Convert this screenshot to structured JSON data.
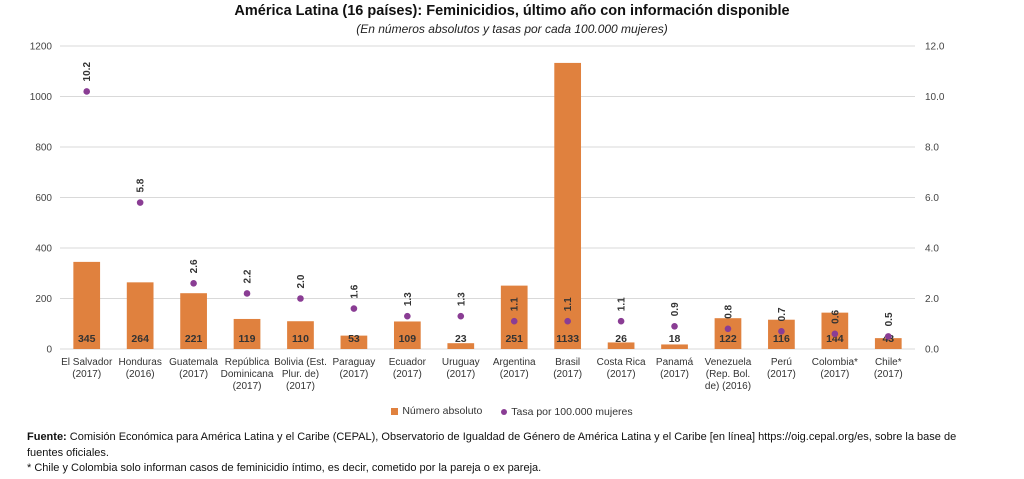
{
  "title": "América Latina (16 países): Feminicidios, último año con información disponible",
  "subtitle": "(En números absolutos y tasas por cada 100.000 mujeres)",
  "colors": {
    "bars": "#e0813e",
    "points": "#8a3d94",
    "grid": "#d9d9d9"
  },
  "chart_data": {
    "type": "bar",
    "categories": [
      [
        "El Salvador",
        "(2017)"
      ],
      [
        "Honduras",
        "(2016)"
      ],
      [
        "Guatemala",
        "(2017)"
      ],
      [
        "República",
        "Dominicana",
        "(2017)"
      ],
      [
        "Bolivia (Est.",
        "Plur. de)",
        "(2017)"
      ],
      [
        "Paraguay",
        "(2017)"
      ],
      [
        "Ecuador",
        "(2017)"
      ],
      [
        "Uruguay",
        "(2017)"
      ],
      [
        "Argentina",
        "(2017)"
      ],
      [
        "Brasil",
        "(2017)"
      ],
      [
        "Costa Rica",
        "(2017)"
      ],
      [
        "Panamá",
        "(2017)"
      ],
      [
        "Venezuela",
        "(Rep. Bol.",
        "de) (2016)"
      ],
      [
        "Perú",
        "(2017)"
      ],
      [
        "Colombia*",
        "(2017)"
      ],
      [
        "Chile*",
        "(2017)"
      ]
    ],
    "series": [
      {
        "name": "Número absoluto",
        "type": "bar",
        "axis": "left",
        "values": [
          345,
          264,
          221,
          119,
          110,
          53,
          109,
          23,
          251,
          1133,
          26,
          18,
          122,
          116,
          144,
          43
        ]
      },
      {
        "name": "Tasa por 100.000 mujeres",
        "type": "scatter",
        "axis": "right",
        "values": [
          10.2,
          5.8,
          2.6,
          2.2,
          2.0,
          1.6,
          1.3,
          1.3,
          1.1,
          1.1,
          1.1,
          0.9,
          0.8,
          0.7,
          0.6,
          0.5
        ],
        "labels": [
          "10.2",
          "5.8",
          "2.6",
          "2.2",
          "2.0",
          "1.6",
          "1.3",
          "1.3",
          "1.1",
          "1.1",
          "1.1",
          "0.9",
          "0.8",
          "0.7",
          "0.6",
          "0.5"
        ]
      }
    ],
    "ylim_left": [
      0,
      1200
    ],
    "yticks_left": [
      "0",
      "200",
      "400",
      "600",
      "800",
      "1000",
      "1200"
    ],
    "ylim_right": [
      0,
      12
    ],
    "yticks_right": [
      "0.0",
      "2.0",
      "4.0",
      "6.0",
      "8.0",
      "10.0",
      "12.0"
    ],
    "grid": true,
    "legend_position": "bottom"
  },
  "footer": {
    "source_label": "Fuente:",
    "source_text": "Comisión Económica para América Latina y el Caribe (CEPAL), Observatorio de Igualdad de Género de América Latina y el Caribe [en línea] https://oig.cepal.org/es, sobre la base de fuentes oficiales.",
    "note": "* Chile y Colombia solo informan casos de feminicidio íntimo, es decir, cometido por la pareja o ex pareja."
  }
}
